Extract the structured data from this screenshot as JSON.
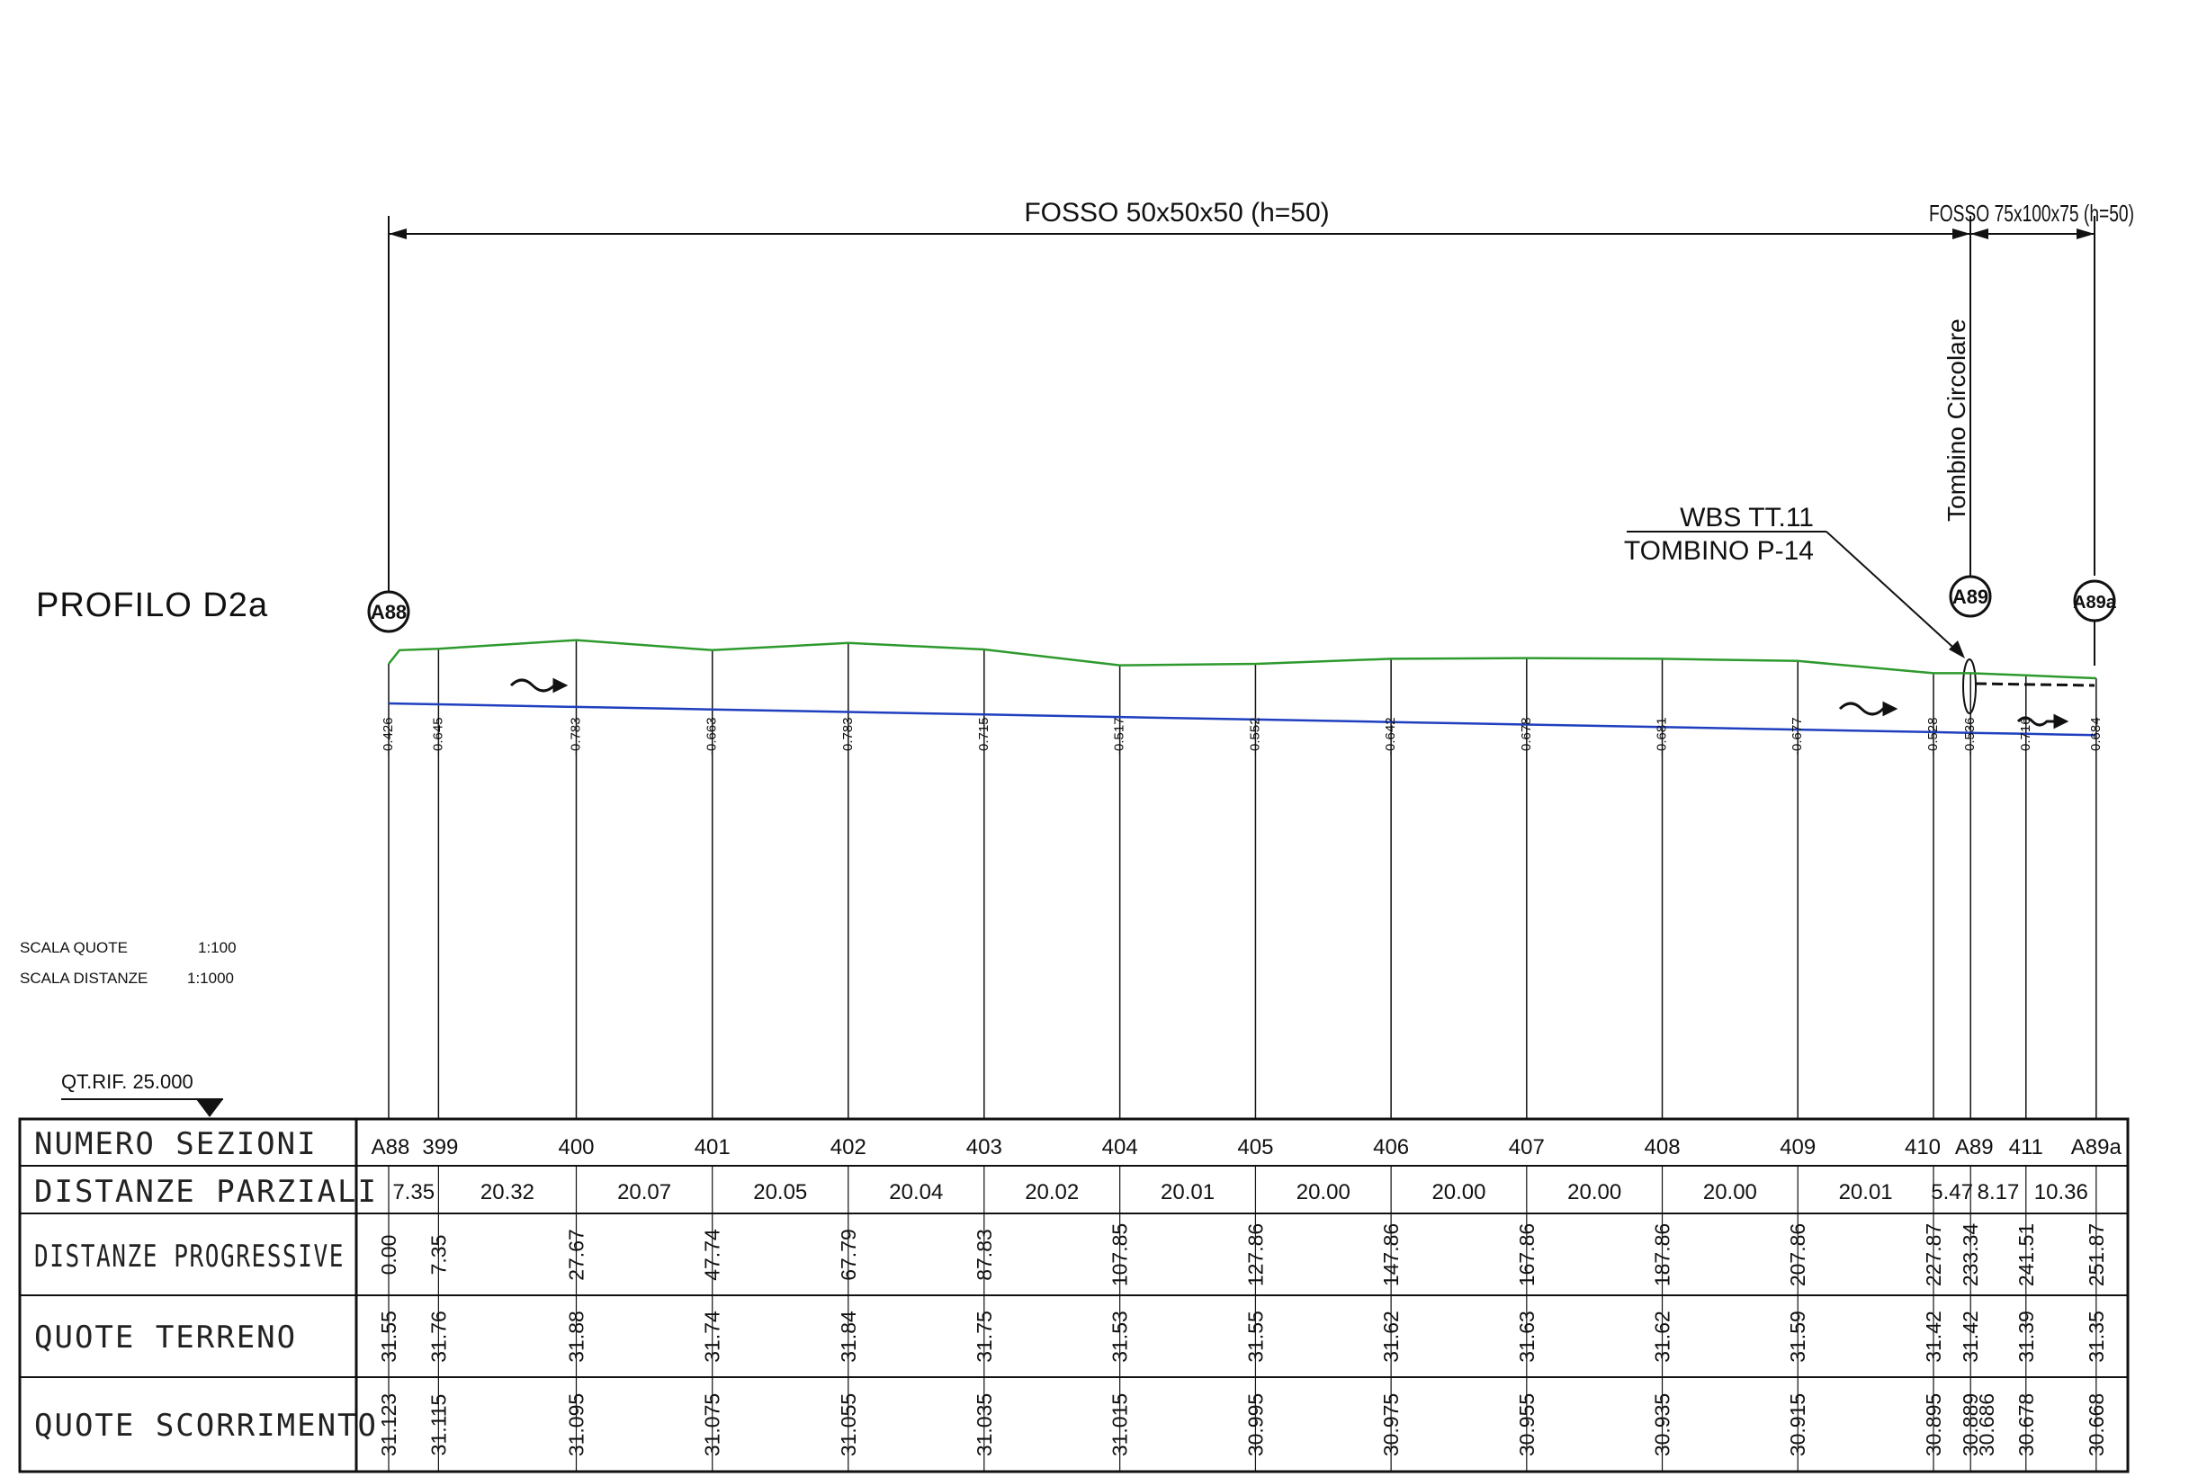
{
  "profile_title": "PROFILO D2a",
  "channels": {
    "main": "FOSSO 50x50x50 (h=50)",
    "end": "FOSSO 75x100x75 (h=50)"
  },
  "culvert": {
    "vertical_label": "Tombino Circolare",
    "wbs": "WBS TT.11",
    "name": "TOMBINO P-14"
  },
  "node_labels": [
    "A88",
    "A89",
    "A89a"
  ],
  "scales": {
    "quote": "SCALA QUOTE",
    "quote_value": "1:100",
    "distances": "SCALA DISTANZE",
    "distances_value": "1:1000"
  },
  "reference": "QT.RIF. 25.000",
  "row_labels": {
    "sections": "NUMERO SEZIONI",
    "partial": "DISTANZE PARZIALI",
    "progressive": "DISTANZE PROGRESSIVE",
    "terrain": "QUOTE TERRENO",
    "flow": "QUOTE SCORRIMENTO"
  },
  "colors": {
    "terrain_line": "#2e9a2e",
    "flow_line": "#1f3fbf",
    "ink": "#111111"
  },
  "chart_data": {
    "type": "line",
    "sections": [
      "A88",
      "399",
      "400",
      "401",
      "402",
      "403",
      "404",
      "405",
      "406",
      "407",
      "408",
      "409",
      "410",
      "A89",
      "411",
      "A89a"
    ],
    "partial_distances": [
      "7.35",
      "20.32",
      "20.07",
      "20.05",
      "20.04",
      "20.02",
      "20.01",
      "20.00",
      "20.00",
      "20.00",
      "20.00",
      "20.01",
      "5.47",
      "8.17",
      "10.36"
    ],
    "progressive_distances": [
      "0.00",
      "7.35",
      "27.67",
      "47.74",
      "67.79",
      "87.83",
      "107.85",
      "127.86",
      "147.86",
      "167.86",
      "187.86",
      "207.86",
      "227.87",
      "233.34",
      "241.51",
      "251.87"
    ],
    "terrain_elevations": [
      "31.55",
      "31.76",
      "31.88",
      "31.74",
      "31.84",
      "31.75",
      "31.53",
      "31.55",
      "31.62",
      "31.63",
      "31.62",
      "31.59",
      "31.42",
      "31.42",
      "31.39",
      "31.35"
    ],
    "flow_elevations": [
      "31.123",
      "31.115",
      "31.095",
      "31.075",
      "31.055",
      "31.035",
      "31.015",
      "30.995",
      "30.975",
      "30.955",
      "30.935",
      "30.915",
      "30.895",
      "30.889",
      "30.678",
      "30.668"
    ],
    "flow_elevation_extra": "30.686",
    "depths": [
      "-0.426",
      "-0.645",
      "-0.783",
      "-0.663",
      "-0.783",
      "-0.715",
      "-0.517",
      "-0.552",
      "-0.642",
      "-0.678",
      "-0.681",
      "-0.677",
      "-0.528",
      "-0.536",
      "-0.716",
      "-0.684"
    ]
  }
}
